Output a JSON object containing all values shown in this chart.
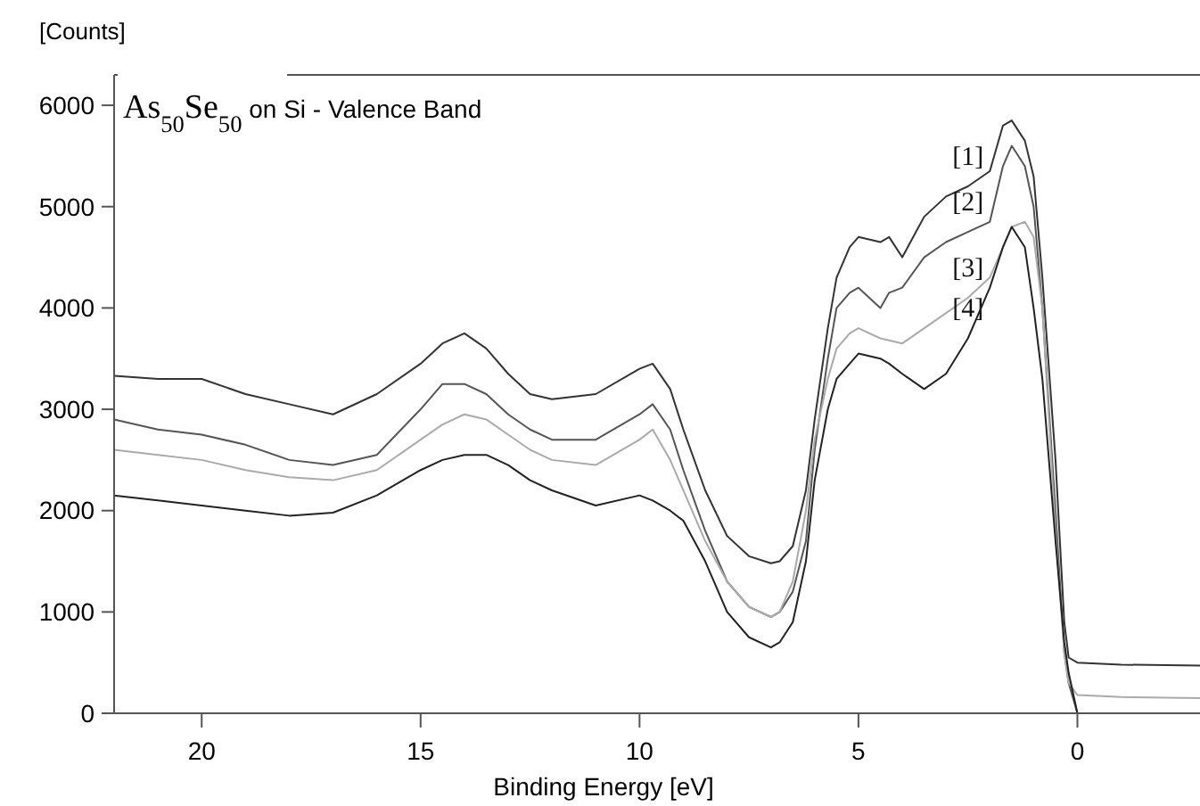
{
  "chart_data": {
    "type": "line",
    "title": "As$_{50}$Se$_{50}$ on Si - Valence Band",
    "xlabel": "Binding Energy [eV]",
    "ylabel": "[Counts]",
    "xlim": [
      22,
      -2.8
    ],
    "xticks": [
      20,
      15,
      10,
      5,
      0
    ],
    "ylim": [
      0,
      6300
    ],
    "yticks": [
      0,
      1000,
      2000,
      3000,
      4000,
      5000,
      6000
    ],
    "grid": false,
    "marker": "none",
    "line_style": "solid",
    "x": [
      22,
      21,
      20,
      19,
      18,
      17,
      16,
      15,
      14.5,
      14,
      13.5,
      13,
      12.5,
      12,
      11,
      10,
      9.7,
      9.3,
      9,
      8.5,
      8,
      7.5,
      7,
      6.8,
      6.5,
      6.2,
      6,
      5.7,
      5.5,
      5.2,
      5,
      4.5,
      4.3,
      4,
      3.5,
      3,
      2.5,
      2,
      1.7,
      1.5,
      1.2,
      1,
      0.8,
      0.5,
      0.3,
      0.2,
      0,
      -1,
      -2.8
    ],
    "series": [
      {
        "name": "[1]",
        "color": "#333333",
        "values": [
          3330,
          3300,
          3300,
          3150,
          3050,
          2950,
          3150,
          3450,
          3650,
          3750,
          3600,
          3350,
          3150,
          3100,
          3150,
          3400,
          3450,
          3200,
          2800,
          2200,
          1750,
          1550,
          1480,
          1500,
          1650,
          2200,
          2900,
          3800,
          4300,
          4600,
          4700,
          4650,
          4700,
          4500,
          4900,
          5100,
          5200,
          5350,
          5800,
          5850,
          5650,
          5300,
          4300,
          2500,
          900,
          550,
          500,
          480,
          470
        ]
      },
      {
        "name": "[2]",
        "color": "#555555",
        "values": [
          2900,
          2800,
          2750,
          2650,
          2500,
          2450,
          2550,
          3000,
          3250,
          3250,
          3150,
          2950,
          2800,
          2700,
          2700,
          2950,
          3050,
          2800,
          2400,
          1800,
          1300,
          1050,
          950,
          1000,
          1200,
          1700,
          2600,
          3500,
          4000,
          4150,
          4200,
          4000,
          4150,
          4200,
          4500,
          4650,
          4750,
          4850,
          5400,
          5600,
          5400,
          5000,
          4000,
          2000,
          600,
          300,
          0,
          0,
          0
        ]
      },
      {
        "name": "[3]",
        "color": "#aaaaaa",
        "values": [
          2600,
          2550,
          2500,
          2400,
          2330,
          2300,
          2400,
          2700,
          2850,
          2950,
          2900,
          2750,
          2600,
          2500,
          2450,
          2700,
          2800,
          2500,
          2200,
          1700,
          1300,
          1050,
          950,
          1000,
          1300,
          2000,
          2700,
          3300,
          3600,
          3750,
          3800,
          3700,
          3680,
          3650,
          3800,
          3950,
          4100,
          4300,
          4600,
          4800,
          4850,
          4700,
          4000,
          1800,
          600,
          300,
          180,
          160,
          150
        ]
      },
      {
        "name": "[4]",
        "color": "#222222",
        "values": [
          2150,
          2100,
          2050,
          2000,
          1950,
          1980,
          2150,
          2400,
          2500,
          2550,
          2550,
          2450,
          2300,
          2200,
          2050,
          2150,
          2100,
          2000,
          1900,
          1500,
          1000,
          750,
          650,
          700,
          900,
          1500,
          2300,
          3000,
          3300,
          3450,
          3550,
          3500,
          3450,
          3350,
          3200,
          3350,
          3700,
          4200,
          4600,
          4800,
          4600,
          4000,
          3300,
          1700,
          700,
          400,
          0,
          0,
          0
        ]
      }
    ]
  }
}
